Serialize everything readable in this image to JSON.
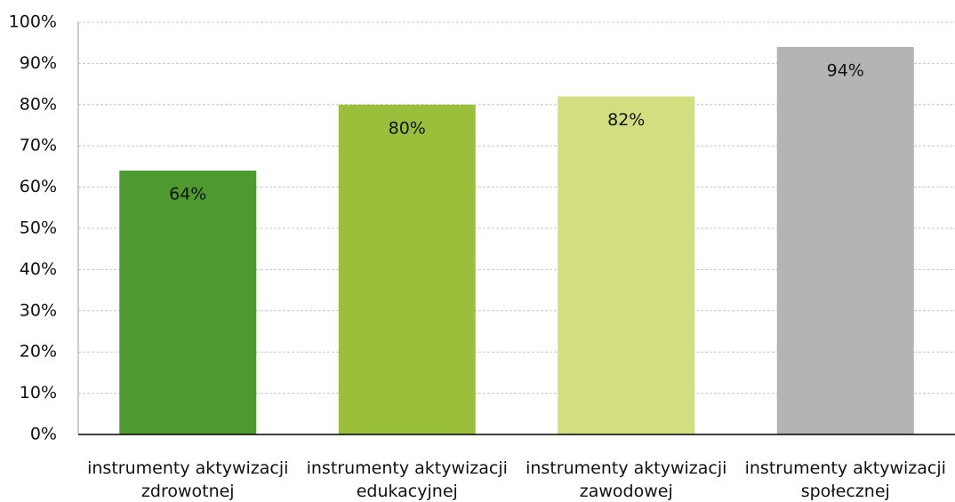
{
  "chart_data": {
    "type": "bar",
    "categories": [
      "instrumenty aktywizacji zdrowotnej",
      "instrumenty aktywizacji edukacyjnej",
      "instrumenty aktywizacji zawodowej",
      "instrumenty aktywizacji społecznej"
    ],
    "values": [
      64,
      80,
      82,
      94
    ],
    "value_labels": [
      "64%",
      "80%",
      "82%",
      "94%"
    ],
    "colors": [
      "#4e9a2f",
      "#9bbf3b",
      "#d3de80",
      "#b3b4b6"
    ],
    "ylim": [
      0,
      100
    ],
    "yticks": [
      {
        "value": 0,
        "label": "0%"
      },
      {
        "value": 10,
        "label": "10%"
      },
      {
        "value": 20,
        "label": "20%"
      },
      {
        "value": 30,
        "label": "30%"
      },
      {
        "value": 40,
        "label": "40%"
      },
      {
        "value": 50,
        "label": "50%"
      },
      {
        "value": 60,
        "label": "60%"
      },
      {
        "value": 70,
        "label": "70%"
      },
      {
        "value": 80,
        "label": "80%"
      },
      {
        "value": 90,
        "label": "90%"
      },
      {
        "value": 100,
        "label": "100%"
      }
    ],
    "grid": true
  }
}
